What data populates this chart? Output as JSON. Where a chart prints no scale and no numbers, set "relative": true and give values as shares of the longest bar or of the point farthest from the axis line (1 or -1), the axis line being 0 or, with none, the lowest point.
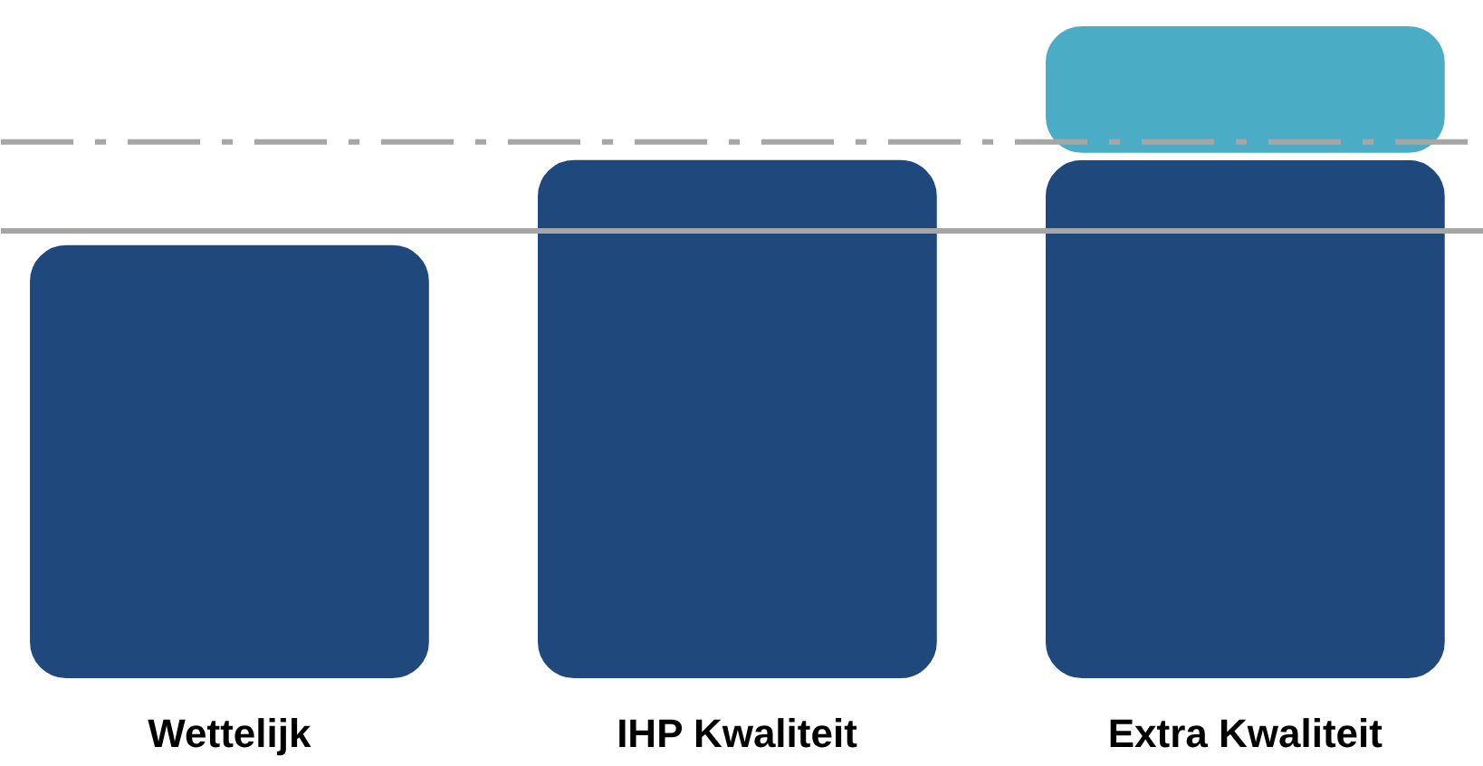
{
  "chart_data": {
    "type": "bar",
    "relative": true,
    "stacked": true,
    "categories": [
      "Wettelijk",
      "IHP Kwaliteit",
      "Extra Kwaliteit"
    ],
    "series": [
      {
        "color": "#1f497d",
        "values": [
          0.668,
          0.797,
          0.797
        ]
      },
      {
        "color": "#4bacc6",
        "values": [
          null,
          null,
          0.203
        ]
      }
    ],
    "ref_lines": [
      {
        "axis": "y",
        "value": 0.684,
        "color": "#a6a6a6",
        "line_style": "solid"
      },
      {
        "axis": "y",
        "value": 0.819,
        "color": "#a6a6a6",
        "line_style": "dashdot"
      }
    ],
    "grid": false
  }
}
